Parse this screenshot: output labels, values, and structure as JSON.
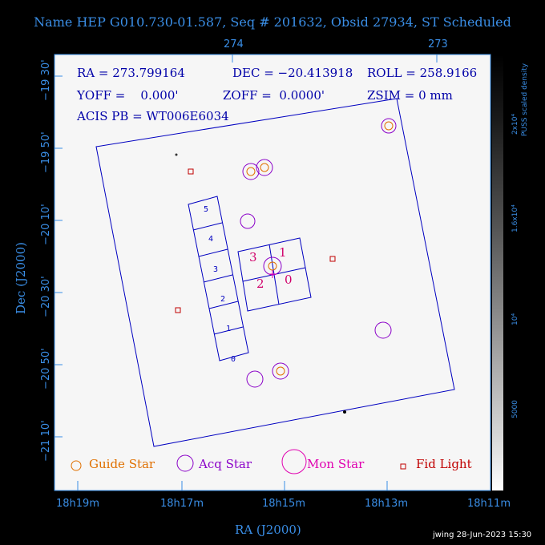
{
  "title": "Name HEP G010.730-01.587, Seq # 201632, Obsid 27934, ST Scheduled",
  "info": {
    "ra": "RA = 273.799164",
    "dec": "DEC = −20.413918",
    "roll": "ROLL = 258.9166",
    "yoff": "YOFF =    0.000'",
    "zoff": "ZOFF =  0.0000'",
    "zsim": "ZSIM = 0 mm",
    "acis": "ACIS PB = WT006E6034"
  },
  "axes": {
    "xlabel": "RA (J2000)",
    "ylabel": "Dec (J2000)",
    "ra_ticks": [
      "18h19m",
      "18h17m",
      "18h15m",
      "18h13m",
      "18h11m"
    ],
    "top_ticks": [
      "274",
      "273"
    ],
    "dec_ticks": [
      "−19 30'",
      "−19 50'",
      "−20 10'",
      "−20 30'",
      "−20 50'",
      "−21 10'"
    ]
  },
  "colorbar": {
    "label": "PUSS scaled density",
    "ticks": [
      "2x10⁴",
      "1.6x10⁴",
      "10⁴",
      "5000"
    ]
  },
  "chips": {
    "spectro": [
      "5",
      "4",
      "3",
      "2",
      "1",
      "0"
    ],
    "imaging": [
      "3",
      "1",
      "2",
      "0"
    ]
  },
  "legend": {
    "guide": "Guide Star",
    "acq": "Acq Star",
    "mon": "Mon Star",
    "fid": "Fid Light"
  },
  "colors": {
    "guide": "#e07000",
    "acq": "#8a00c8",
    "mon": "#e000b0",
    "fid": "#c00000",
    "outline": "#0000c0"
  },
  "footer": "jwing 28-Jun-2023 15:30"
}
